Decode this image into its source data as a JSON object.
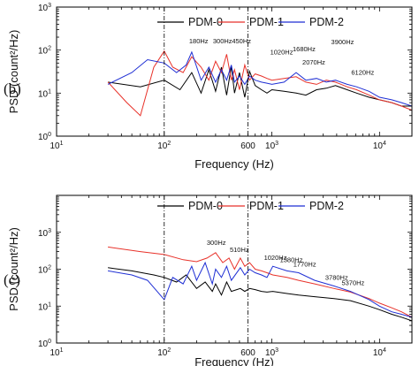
{
  "chart_data": [
    {
      "type": "line",
      "panel_label": "(b)",
      "xlabel": "Frequency (Hz)",
      "ylabel": "PSD (count²/Hz)",
      "xscale": "log",
      "yscale": "log",
      "xlim": [
        10,
        20000
      ],
      "ylim": [
        1,
        1000
      ],
      "x_major_ticks": [
        {
          "value": 10,
          "label": "10",
          "sup": "1"
        },
        {
          "value": 100,
          "label": "10",
          "sup": "2"
        },
        {
          "value": 600,
          "label": "600",
          "sup": ""
        },
        {
          "value": 1000,
          "label": "10",
          "sup": "3"
        },
        {
          "value": 10000,
          "label": "10",
          "sup": "4"
        }
      ],
      "y_major_ticks": [
        {
          "value": 1,
          "label": "10",
          "sup": "0"
        },
        {
          "value": 10,
          "label": "10",
          "sup": "1"
        },
        {
          "value": 100,
          "label": "10",
          "sup": "2"
        },
        {
          "value": 1000,
          "label": "10",
          "sup": "3"
        }
      ],
      "vlines": [
        100,
        600
      ],
      "legend_position": "top",
      "series": [
        {
          "name": "PDM-0",
          "color": "#000000",
          "x": [
            30,
            60,
            100,
            140,
            180,
            220,
            260,
            300,
            340,
            380,
            420,
            450,
            500,
            560,
            620,
            700,
            800,
            900,
            1000,
            1300,
            1680,
            2070,
            2600,
            3200,
            3900,
            5000,
            6120,
            8000,
            10000,
            13000,
            16000,
            20000
          ],
          "y": [
            18,
            14,
            20,
            12,
            30,
            10,
            35,
            11,
            40,
            9,
            42,
            10,
            30,
            8,
            32,
            15,
            12,
            10,
            12,
            11,
            10,
            9,
            12,
            13,
            15,
            12,
            10,
            8,
            7,
            6,
            5,
            5
          ]
        },
        {
          "name": "PDM-1",
          "color": "#e8322a",
          "x": [
            30,
            45,
            60,
            80,
            100,
            120,
            150,
            180,
            220,
            260,
            300,
            340,
            380,
            420,
            450,
            500,
            560,
            620,
            700,
            800,
            900,
            1000,
            1300,
            1680,
            2070,
            2600,
            3200,
            3900,
            5000,
            6120,
            8000,
            10000,
            13000,
            16000,
            20000
          ],
          "y": [
            18,
            6,
            3,
            40,
            95,
            40,
            30,
            70,
            40,
            20,
            55,
            30,
            80,
            20,
            35,
            12,
            45,
            20,
            28,
            25,
            22,
            20,
            22,
            24,
            18,
            16,
            20,
            18,
            14,
            12,
            9,
            7,
            6,
            5,
            4
          ]
        },
        {
          "name": "PDM-2",
          "color": "#1f2fd4",
          "x": [
            30,
            50,
            70,
            100,
            130,
            160,
            180,
            220,
            260,
            300,
            340,
            380,
            420,
            450,
            500,
            560,
            620,
            700,
            800,
            900,
            1000,
            1300,
            1680,
            2070,
            2600,
            3200,
            3900,
            5000,
            6120,
            8000,
            10000,
            13000,
            16000,
            20000
          ],
          "y": [
            16,
            30,
            60,
            50,
            30,
            45,
            90,
            20,
            40,
            18,
            35,
            20,
            45,
            18,
            25,
            16,
            25,
            20,
            18,
            17,
            16,
            18,
            30,
            20,
            22,
            18,
            20,
            16,
            14,
            11,
            8,
            7,
            6,
            5
          ]
        }
      ],
      "annotations": [
        "180Hz",
        "300Hz",
        "450Hz",
        "1020Hz",
        "1680Hz",
        "2070Hz",
        "3900Hz",
        "6120Hz"
      ],
      "annotation_points": [
        {
          "x": 180,
          "y": 95
        },
        {
          "x": 300,
          "y": 95
        },
        {
          "x": 450,
          "y": 95
        },
        {
          "x": 1020,
          "y": 55
        },
        {
          "x": 1680,
          "y": 65
        },
        {
          "x": 2070,
          "y": 33
        },
        {
          "x": 3900,
          "y": 85
        },
        {
          "x": 6120,
          "y": 20
        }
      ]
    },
    {
      "type": "line",
      "panel_label": "(c)",
      "xlabel": "Frequency (Hz)",
      "ylabel": "PSD (count²/Hz)",
      "xscale": "log",
      "yscale": "log",
      "xlim": [
        10,
        20000
      ],
      "ylim": [
        1,
        10000
      ],
      "x_major_ticks": [
        {
          "value": 10,
          "label": "10",
          "sup": "1"
        },
        {
          "value": 100,
          "label": "10",
          "sup": "2"
        },
        {
          "value": 600,
          "label": "600",
          "sup": ""
        },
        {
          "value": 1000,
          "label": "10",
          "sup": "3"
        },
        {
          "value": 10000,
          "label": "10",
          "sup": "4"
        }
      ],
      "y_major_ticks": [
        {
          "value": 1,
          "label": "10",
          "sup": "0"
        },
        {
          "value": 10,
          "label": "10",
          "sup": "1"
        },
        {
          "value": 100,
          "label": "10",
          "sup": "2"
        },
        {
          "value": 1000,
          "label": "10",
          "sup": "3"
        }
      ],
      "vlines": [
        100,
        600
      ],
      "legend_position": "top",
      "series": [
        {
          "name": "PDM-0",
          "color": "#000000",
          "x": [
            30,
            50,
            80,
            100,
            130,
            160,
            200,
            240,
            280,
            300,
            340,
            380,
            420,
            510,
            560,
            620,
            700,
            800,
            900,
            1020,
            1380,
            1770,
            2500,
            3780,
            5370,
            8000,
            10000,
            13000,
            16000,
            20000
          ],
          "y": [
            110,
            90,
            70,
            60,
            45,
            70,
            30,
            45,
            25,
            40,
            20,
            45,
            25,
            30,
            25,
            30,
            28,
            25,
            24,
            25,
            22,
            20,
            18,
            16,
            14,
            10,
            8,
            6,
            5,
            4
          ]
        },
        {
          "name": "PDM-1",
          "color": "#e8322a",
          "x": [
            30,
            60,
            100,
            150,
            200,
            250,
            300,
            350,
            400,
            450,
            510,
            560,
            620,
            700,
            800,
            900,
            1020,
            1380,
            1770,
            2500,
            3780,
            5370,
            8000,
            10000,
            13000,
            16000,
            20000
          ],
          "y": [
            400,
            300,
            250,
            180,
            160,
            200,
            280,
            150,
            200,
            100,
            200,
            120,
            150,
            100,
            90,
            80,
            70,
            60,
            50,
            40,
            30,
            24,
            16,
            12,
            9,
            7,
            5
          ]
        },
        {
          "name": "PDM-2",
          "color": "#1f2fd4",
          "x": [
            30,
            50,
            70,
            100,
            120,
            150,
            180,
            200,
            240,
            280,
            300,
            340,
            380,
            420,
            510,
            560,
            620,
            700,
            800,
            900,
            1020,
            1380,
            1770,
            2500,
            3780,
            5370,
            8000,
            10000,
            13000,
            16000,
            20000
          ],
          "y": [
            90,
            70,
            50,
            15,
            60,
            40,
            120,
            50,
            150,
            40,
            100,
            60,
            120,
            50,
            110,
            70,
            100,
            80,
            70,
            60,
            120,
            90,
            80,
            50,
            35,
            25,
            15,
            10,
            7,
            6,
            5
          ]
        }
      ],
      "annotations": [
        "300Hz",
        "510Hz",
        "1020Hz",
        "1380Hz",
        "1770Hz",
        "3780Hz",
        "5370Hz"
      ],
      "annotation_points": [
        {
          "x": 300,
          "y": 280
        },
        {
          "x": 510,
          "y": 200
        },
        {
          "x": 1020,
          "y": 120
        },
        {
          "x": 1380,
          "y": 100
        },
        {
          "x": 1770,
          "y": 80
        },
        {
          "x": 3780,
          "y": 35
        },
        {
          "x": 5370,
          "y": 25
        }
      ]
    }
  ]
}
